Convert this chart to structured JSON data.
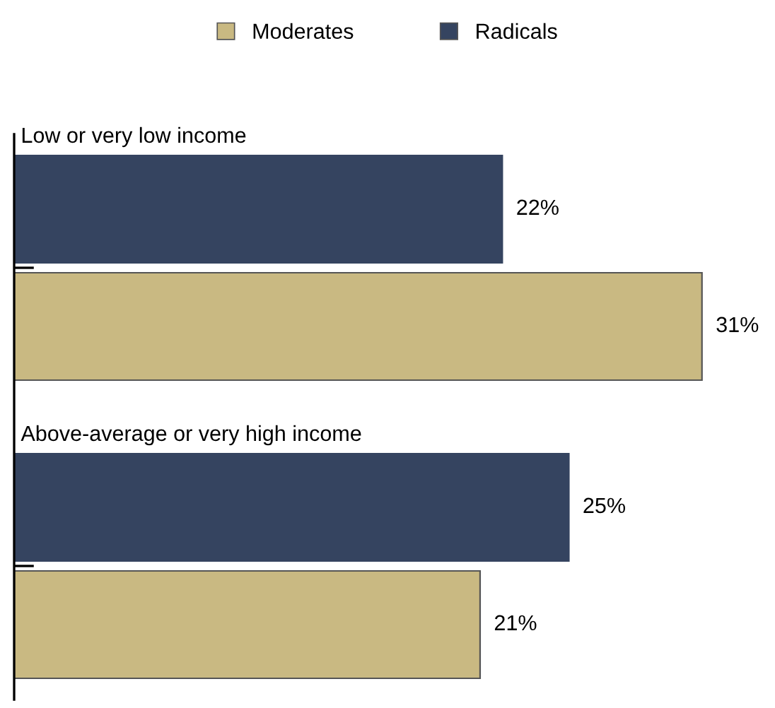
{
  "chart_data": {
    "type": "bar",
    "orientation": "horizontal",
    "categories": [
      "Low or very low income",
      "Above-average or very high income"
    ],
    "series": [
      {
        "name": "Moderates",
        "color": "#c9b982",
        "values": [
          31,
          21
        ],
        "value_labels": [
          "31%",
          "21%"
        ]
      },
      {
        "name": "Radicals",
        "color": "#354460",
        "values": [
          22,
          25
        ],
        "value_labels": [
          "22%",
          "25%"
        ]
      }
    ],
    "legend": "top",
    "grid": false
  }
}
